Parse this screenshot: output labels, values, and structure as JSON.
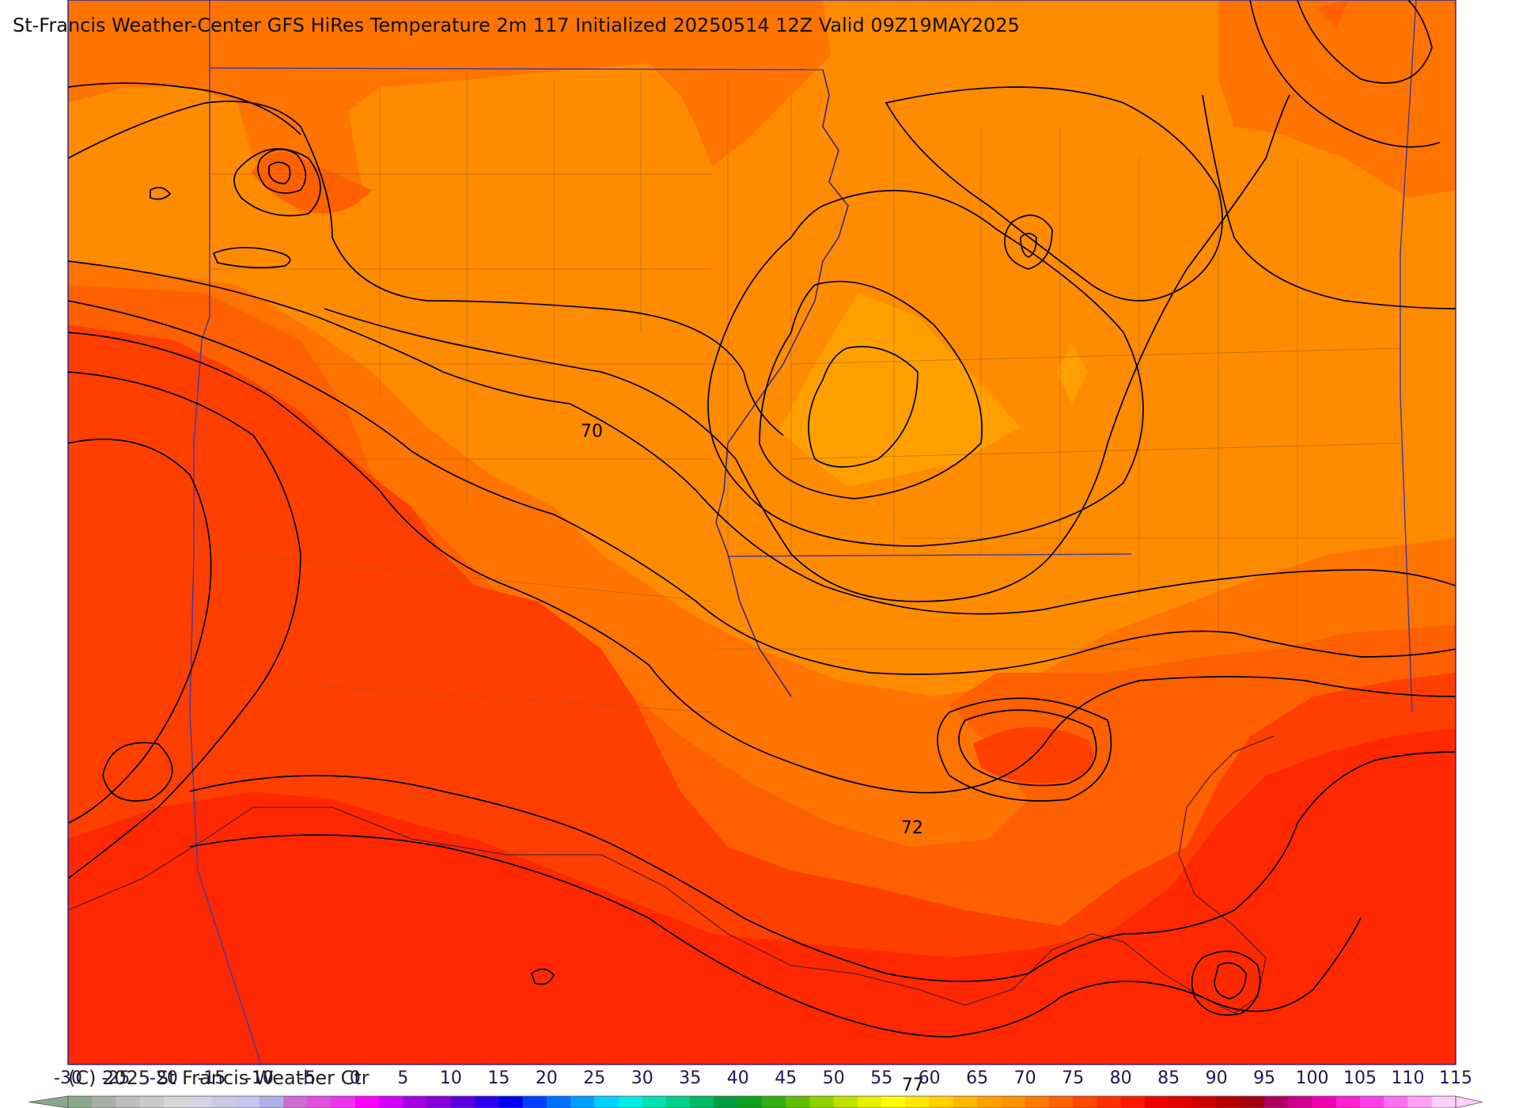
{
  "title": "St-Francis Weather-Center GFS HiRes Temperature 2m  117 Initialized 20250514 12Z Valid 09Z19MAY2025",
  "copyright": "(C) 2025 St Francis Weather Ctr",
  "contour_labels": [
    "70",
    "72",
    "77"
  ],
  "colorbar": {
    "ticks": [
      "-30",
      "-25",
      "-20",
      "-15",
      "-10",
      "-5",
      "0",
      "5",
      "10",
      "15",
      "20",
      "25",
      "30",
      "35",
      "40",
      "45",
      "50",
      "55",
      "60",
      "65",
      "70",
      "75",
      "80",
      "85",
      "90",
      "95",
      "100",
      "105",
      "110",
      "115"
    ],
    "colors": [
      "#8aa98c",
      "#a7b0a7",
      "#bdbdbd",
      "#cacaca",
      "#d7d7d7",
      "#d5d5e6",
      "#cbcbe6",
      "#c6c6ee",
      "#b0b0e8",
      "#cf6ad1",
      "#e24ee0",
      "#ee33ee",
      "#ff00ff",
      "#d100ff",
      "#a600e0",
      "#8400d6",
      "#5a00e0",
      "#2c00ee",
      "#0000f0",
      "#0040ff",
      "#0070ff",
      "#00a0ff",
      "#00d0ff",
      "#00eee6",
      "#00e0b0",
      "#00d08c",
      "#00b866",
      "#00a040",
      "#10a020",
      "#2fb010",
      "#60c000",
      "#90d000",
      "#c0e000",
      "#e8f000",
      "#ffff00",
      "#ffe800",
      "#ffd000",
      "#ffb800",
      "#ffa000",
      "#ff9000",
      "#ff7800",
      "#ff6000",
      "#ff4800",
      "#ff3000",
      "#ff1800",
      "#f00000",
      "#e00000",
      "#cc0000",
      "#b40000",
      "#a00010",
      "#b00060",
      "#d00090",
      "#f000b0",
      "#ff20d0",
      "#ff40e8",
      "#ff70f0",
      "#ffa0f6",
      "#ffd0fa"
    ]
  },
  "temperature_fill_colors": {
    "warmest": "#ff2800",
    "hot": "#ff3f00",
    "warm": "#ff6000",
    "mild": "#ff7400",
    "cool": "#ff8b00",
    "cooler": "#ffa000"
  }
}
